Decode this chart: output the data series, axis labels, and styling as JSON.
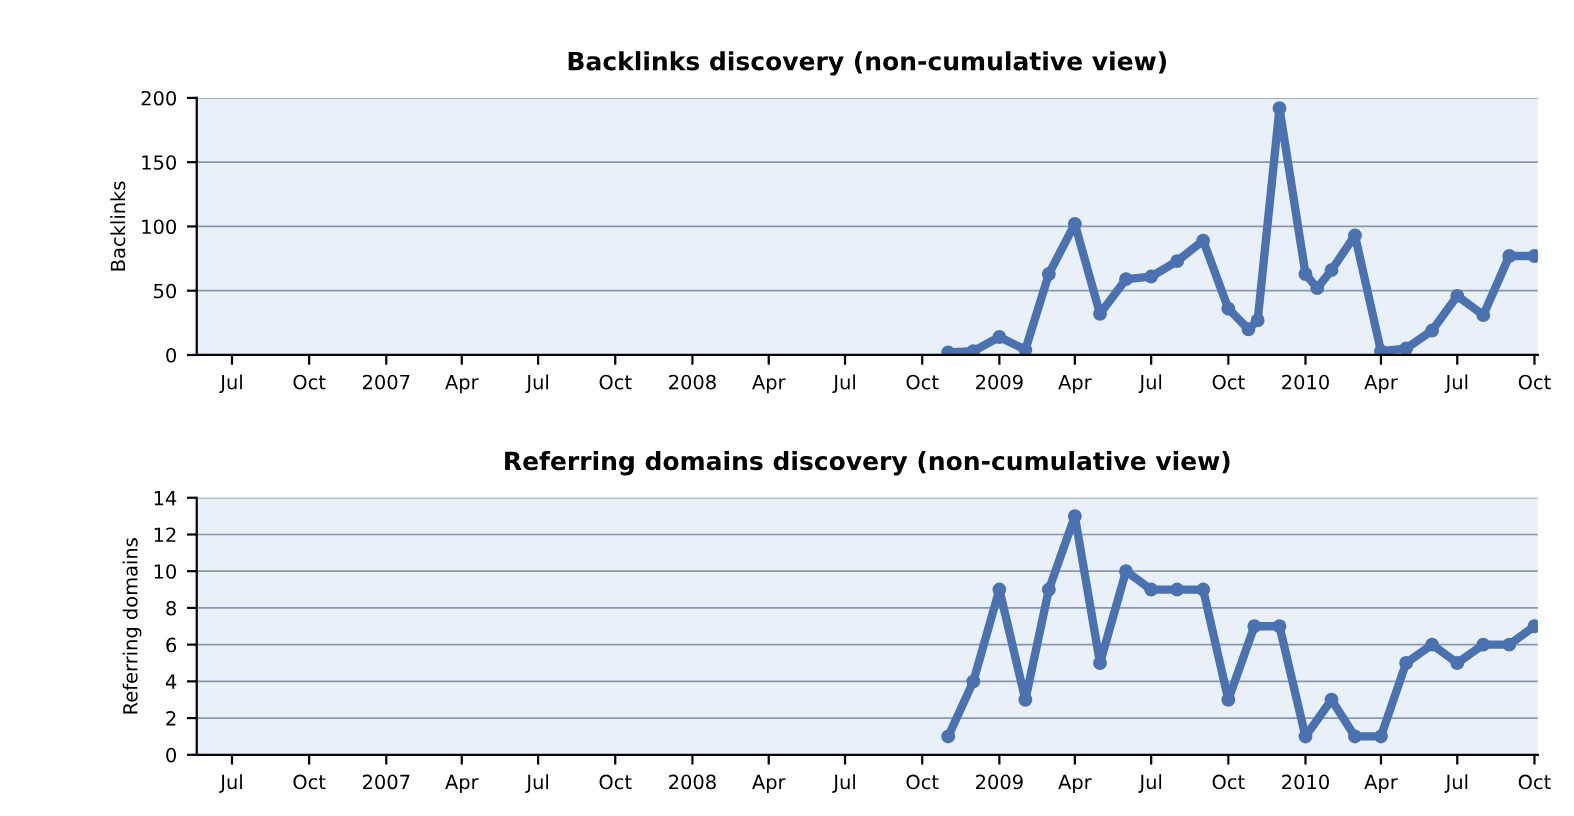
{
  "chart_data": [
    {
      "type": "line",
      "title": "Backlinks discovery (non-cumulative view)",
      "ylabel": "Backlinks",
      "marker": "circle",
      "line_style": "solid",
      "grid": "y",
      "x": [
        "2008-11-01",
        "2008-12-01",
        "2009-01-01",
        "2009-02-01",
        "2009-03-01",
        "2009-04-01",
        "2009-05-01",
        "2009-06-01",
        "2009-07-01",
        "2009-08-01",
        "2009-09-01",
        "2009-10-01",
        "2009-10-25",
        "2009-11-05",
        "2009-12-01",
        "2010-01-01",
        "2010-01-15",
        "2010-02-01",
        "2010-03-01",
        "2010-04-01",
        "2010-05-01",
        "2010-06-01",
        "2010-07-01",
        "2010-08-01",
        "2010-09-01",
        "2010-10-01"
      ],
      "series": [
        {
          "color": "#4a72b0",
          "values": [
            2,
            3,
            14,
            4,
            63,
            102,
            32,
            59,
            61,
            73,
            89,
            36,
            20,
            27,
            192,
            63,
            52,
            66,
            93,
            3,
            5,
            19,
            46,
            31,
            77,
            77
          ]
        }
      ],
      "xlim": [
        "2006-05-20",
        "2010-10-05"
      ],
      "ylim": [
        0,
        200
      ],
      "yticks": [
        0,
        50,
        100,
        150,
        200
      ],
      "xticks": [
        {
          "value": "2006-07-01",
          "label": "Jul"
        },
        {
          "value": "2006-10-01",
          "label": "Oct"
        },
        {
          "value": "2007-01-01",
          "label": "2007"
        },
        {
          "value": "2007-04-01",
          "label": "Apr"
        },
        {
          "value": "2007-07-01",
          "label": "Jul"
        },
        {
          "value": "2007-10-01",
          "label": "Oct"
        },
        {
          "value": "2008-01-01",
          "label": "2008"
        },
        {
          "value": "2008-04-01",
          "label": "Apr"
        },
        {
          "value": "2008-07-01",
          "label": "Jul"
        },
        {
          "value": "2008-10-01",
          "label": "Oct"
        },
        {
          "value": "2009-01-01",
          "label": "2009"
        },
        {
          "value": "2009-04-01",
          "label": "Apr"
        },
        {
          "value": "2009-07-01",
          "label": "Jul"
        },
        {
          "value": "2009-10-01",
          "label": "Oct"
        },
        {
          "value": "2010-01-01",
          "label": "2010"
        },
        {
          "value": "2010-04-01",
          "label": "Apr"
        },
        {
          "value": "2010-07-01",
          "label": "Jul"
        },
        {
          "value": "2010-10-01",
          "label": "Oct"
        }
      ]
    },
    {
      "type": "line",
      "title": "Referring domains discovery (non-cumulative view)",
      "ylabel": "Referring domains",
      "marker": "circle",
      "line_style": "solid",
      "grid": "y",
      "x": [
        "2008-11-01",
        "2008-12-01",
        "2009-01-01",
        "2009-02-01",
        "2009-03-01",
        "2009-04-01",
        "2009-05-01",
        "2009-06-01",
        "2009-07-01",
        "2009-08-01",
        "2009-09-01",
        "2009-10-01",
        "2009-11-01",
        "2009-12-01",
        "2010-01-01",
        "2010-02-01",
        "2010-03-01",
        "2010-04-01",
        "2010-05-01",
        "2010-06-01",
        "2010-07-01",
        "2010-08-01",
        "2010-09-01",
        "2010-10-01"
      ],
      "series": [
        {
          "color": "#4a72b0",
          "values": [
            1,
            4,
            9,
            3,
            9,
            13,
            5,
            10,
            9,
            9,
            9,
            3,
            7,
            7,
            1,
            3,
            1,
            1,
            5,
            6,
            5,
            6,
            6,
            7
          ]
        }
      ],
      "xlim": [
        "2006-05-20",
        "2010-10-05"
      ],
      "ylim": [
        0,
        14
      ],
      "yticks": [
        0,
        2,
        4,
        6,
        8,
        10,
        12,
        14
      ],
      "xticks": [
        {
          "value": "2006-07-01",
          "label": "Jul"
        },
        {
          "value": "2006-10-01",
          "label": "Oct"
        },
        {
          "value": "2007-01-01",
          "label": "2007"
        },
        {
          "value": "2007-04-01",
          "label": "Apr"
        },
        {
          "value": "2007-07-01",
          "label": "Jul"
        },
        {
          "value": "2007-10-01",
          "label": "Oct"
        },
        {
          "value": "2008-01-01",
          "label": "2008"
        },
        {
          "value": "2008-04-01",
          "label": "Apr"
        },
        {
          "value": "2008-07-01",
          "label": "Jul"
        },
        {
          "value": "2008-10-01",
          "label": "Oct"
        },
        {
          "value": "2009-01-01",
          "label": "2009"
        },
        {
          "value": "2009-04-01",
          "label": "Apr"
        },
        {
          "value": "2009-07-01",
          "label": "Jul"
        },
        {
          "value": "2009-10-01",
          "label": "Oct"
        },
        {
          "value": "2010-01-01",
          "label": "2010"
        },
        {
          "value": "2010-04-01",
          "label": "Apr"
        },
        {
          "value": "2010-07-01",
          "label": "Jul"
        },
        {
          "value": "2010-10-01",
          "label": "Oct"
        }
      ]
    }
  ]
}
